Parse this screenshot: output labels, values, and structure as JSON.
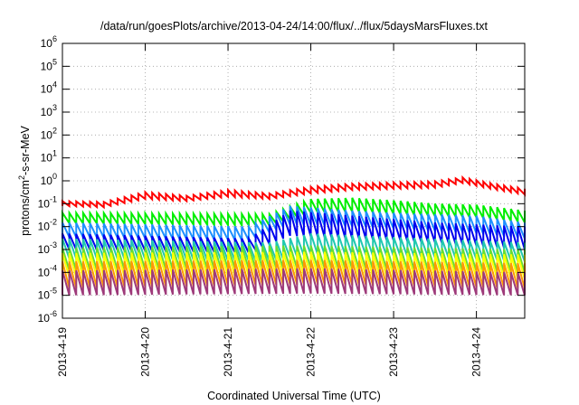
{
  "chart_data": {
    "type": "line",
    "title": "/data/run/goesPlots/archive/2013-04-24/14:00/flux/../flux/5daysMarsFluxes.txt",
    "xlabel": "Coordinated Universal Time (UTC)",
    "ylabel": {
      "prefix": "protons/cm",
      "exp": "2",
      "suffix": "-s-sr-MeV"
    },
    "yscale": "log",
    "ylim_exp": [
      -6,
      6
    ],
    "yticks": [
      {
        "base": "10",
        "exp": "-6"
      },
      {
        "base": "10",
        "exp": "-5"
      },
      {
        "base": "10",
        "exp": "-4"
      },
      {
        "base": "10",
        "exp": "-3"
      },
      {
        "base": "10",
        "exp": "-2"
      },
      {
        "base": "10",
        "exp": "-1"
      },
      {
        "base": "10",
        "exp": "0"
      },
      {
        "base": "10",
        "exp": "1"
      },
      {
        "base": "10",
        "exp": "2"
      },
      {
        "base": "10",
        "exp": "3"
      },
      {
        "base": "10",
        "exp": "4"
      },
      {
        "base": "10",
        "exp": "5"
      },
      {
        "base": "10",
        "exp": "6"
      }
    ],
    "xlim": [
      "2013-04-19T00:00",
      "2013-04-24T14:00"
    ],
    "xticks": [
      "2013-4-19",
      "2013-4-20",
      "2013-4-21",
      "2013-4-22",
      "2013-4-23",
      "2013-4-24"
    ],
    "grid": true,
    "sawtooth_period_hours": 2,
    "series": [
      {
        "color": "#ff0000",
        "x": [
          "2013-04-19T00:00",
          "2013-04-19T12:00",
          "2013-04-20T00:00",
          "2013-04-20T12:00",
          "2013-04-21T00:00",
          "2013-04-21T12:00",
          "2013-04-22T00:00",
          "2013-04-22T12:00",
          "2013-04-23T00:00",
          "2013-04-23T12:00",
          "2013-04-23T20:00",
          "2013-04-24T06:00",
          "2013-04-24T14:00"
        ],
        "peak": [
          0.13,
          0.12,
          0.32,
          0.22,
          0.4,
          0.28,
          0.55,
          0.75,
          0.85,
          0.95,
          1.4,
          0.7,
          0.45
        ],
        "trough": [
          0.08,
          0.07,
          0.16,
          0.13,
          0.2,
          0.16,
          0.28,
          0.4,
          0.45,
          0.5,
          0.8,
          0.4,
          0.25
        ]
      },
      {
        "color": "#00ee00",
        "x": [
          "2013-04-19T00:00",
          "2013-04-21T12:00",
          "2013-04-22T00:00",
          "2013-04-22T12:00",
          "2013-04-23T00:00",
          "2013-04-23T12:00",
          "2013-04-24T00:00",
          "2013-04-24T14:00"
        ],
        "peak": [
          0.04,
          0.035,
          0.16,
          0.18,
          0.14,
          0.1,
          0.09,
          0.05
        ],
        "trough": [
          0.014,
          0.011,
          0.04,
          0.045,
          0.035,
          0.028,
          0.025,
          0.015
        ]
      },
      {
        "color": "#1e90ff",
        "x": [
          "2013-04-19T00:00",
          "2013-04-21T06:00",
          "2013-04-21T18:00",
          "2013-04-22T12:00",
          "2013-04-23T00:00",
          "2013-04-24T00:00",
          "2013-04-24T14:00"
        ],
        "peak": [
          0.015,
          0.01,
          0.08,
          0.05,
          0.04,
          0.03,
          0.015
        ],
        "trough": [
          0.0035,
          0.0025,
          0.012,
          0.01,
          0.008,
          0.005,
          0.003
        ]
      },
      {
        "color": "#0000ee",
        "x": [
          "2013-04-19T00:00",
          "2013-04-21T06:00",
          "2013-04-21T18:00",
          "2013-04-22T12:00",
          "2013-04-23T12:00",
          "2013-04-24T14:00"
        ],
        "peak": [
          0.005,
          0.003,
          0.05,
          0.03,
          0.015,
          0.01
        ],
        "trough": [
          0.001,
          0.0007,
          0.004,
          0.003,
          0.002,
          0.001
        ]
      },
      {
        "color": "#20c8b0",
        "x": [
          "2013-04-19T00:00",
          "2013-04-21T12:00",
          "2013-04-22T00:00",
          "2013-04-23T00:00",
          "2013-04-24T14:00"
        ],
        "peak": [
          0.003,
          0.002,
          0.005,
          0.0035,
          0.002
        ],
        "trough": [
          0.0004,
          0.0003,
          0.0006,
          0.0005,
          0.0003
        ]
      },
      {
        "color": "#66dd33",
        "x": [
          "2013-04-19T00:00",
          "2013-04-22T00:00",
          "2013-04-24T14:00"
        ],
        "peak": [
          0.0012,
          0.0015,
          0.001
        ],
        "trough": [
          0.00012,
          0.00015,
          0.0001
        ]
      },
      {
        "color": "#ffff00",
        "x": [
          "2013-04-19T00:00",
          "2013-04-22T00:00",
          "2013-04-24T14:00"
        ],
        "peak": [
          0.0007,
          0.0008,
          0.0006
        ],
        "trough": [
          6e-05,
          7e-05,
          5e-05
        ]
      },
      {
        "color": "#ff9900",
        "x": [
          "2013-04-19T00:00",
          "2013-04-22T00:00",
          "2013-04-24T14:00"
        ],
        "peak": [
          0.0003,
          0.00035,
          0.00025
        ],
        "trough": [
          2e-05,
          3e-05,
          2e-05
        ]
      },
      {
        "color": "#9e3a7a",
        "x": [
          "2013-04-19T00:00",
          "2013-04-22T00:00",
          "2013-04-24T14:00"
        ],
        "peak": [
          0.00012,
          0.00015,
          0.0001
        ],
        "trough": [
          1e-05,
          1.2e-05,
          1e-05
        ]
      }
    ]
  }
}
